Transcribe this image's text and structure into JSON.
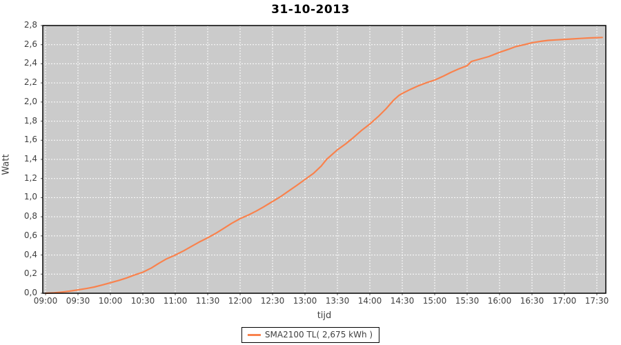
{
  "title": "31-10-2013",
  "legend": {
    "entries": [
      {
        "label": "SMA2100 TL( 2,675 kWh )",
        "color": "#f9824d"
      }
    ],
    "position": "bottom-center"
  },
  "colors": {
    "series": "#f9824d",
    "plot_background": "#cbcbcb",
    "gridline": "#ffffff",
    "plot_border": "#000000",
    "axis_text": "#3f3f3f",
    "tick_mark": "#555555",
    "title_text": "#000000",
    "page_background": "#ffffff"
  },
  "chart_data": {
    "type": "line",
    "title": "31-10-2013",
    "xlabel": "tijd",
    "ylabel": "Watt",
    "x_tick_labels": [
      "09:00",
      "09:30",
      "10:00",
      "10:30",
      "11:00",
      "11:30",
      "12:00",
      "12:30",
      "13:00",
      "13:30",
      "14:00",
      "14:30",
      "15:00",
      "15:30",
      "16:00",
      "16:30",
      "17:00",
      "17:30"
    ],
    "x_tick_minutes": [
      0,
      30,
      60,
      90,
      120,
      150,
      180,
      210,
      240,
      270,
      300,
      330,
      360,
      390,
      420,
      450,
      480,
      510
    ],
    "y_tick_labels": [
      "0,0",
      "0,2",
      "0,4",
      "0,6",
      "0,8",
      "1,0",
      "1,2",
      "1,4",
      "1,6",
      "1,8",
      "2,0",
      "2,2",
      "2,4",
      "2,6",
      "2,8"
    ],
    "y_tick_values": [
      0.0,
      0.2,
      0.4,
      0.6,
      0.8,
      1.0,
      1.2,
      1.4,
      1.6,
      1.8,
      2.0,
      2.2,
      2.4,
      2.6,
      2.8
    ],
    "ylim": [
      0,
      2.8
    ],
    "xlim_minutes": [
      0,
      510
    ],
    "grid": "dashed-white-both-axes",
    "legend_position": "bottom",
    "series": [
      {
        "name": "SMA2100 TL( 2,675 kWh )",
        "color": "#f9824d",
        "total_kwh_label": "2,675 kWh",
        "points_minutes_kwh": [
          [
            0,
            0.0
          ],
          [
            8,
            0.004
          ],
          [
            15,
            0.012
          ],
          [
            22,
            0.022
          ],
          [
            30,
            0.035
          ],
          [
            38,
            0.05
          ],
          [
            45,
            0.065
          ],
          [
            52,
            0.085
          ],
          [
            60,
            0.11
          ],
          [
            68,
            0.135
          ],
          [
            75,
            0.16
          ],
          [
            82,
            0.19
          ],
          [
            90,
            0.22
          ],
          [
            98,
            0.265
          ],
          [
            105,
            0.315
          ],
          [
            112,
            0.36
          ],
          [
            120,
            0.4
          ],
          [
            128,
            0.445
          ],
          [
            135,
            0.49
          ],
          [
            142,
            0.535
          ],
          [
            150,
            0.58
          ],
          [
            158,
            0.63
          ],
          [
            165,
            0.68
          ],
          [
            172,
            0.73
          ],
          [
            180,
            0.78
          ],
          [
            188,
            0.82
          ],
          [
            195,
            0.86
          ],
          [
            202,
            0.905
          ],
          [
            210,
            0.96
          ],
          [
            218,
            1.015
          ],
          [
            225,
            1.07
          ],
          [
            232,
            1.125
          ],
          [
            240,
            1.19
          ],
          [
            248,
            1.255
          ],
          [
            255,
            1.33
          ],
          [
            260,
            1.4
          ],
          [
            270,
            1.5
          ],
          [
            278,
            1.565
          ],
          [
            285,
            1.63
          ],
          [
            292,
            1.7
          ],
          [
            300,
            1.77
          ],
          [
            308,
            1.85
          ],
          [
            315,
            1.93
          ],
          [
            322,
            2.02
          ],
          [
            327,
            2.07
          ],
          [
            330,
            2.09
          ],
          [
            338,
            2.135
          ],
          [
            345,
            2.17
          ],
          [
            352,
            2.2
          ],
          [
            360,
            2.23
          ],
          [
            368,
            2.27
          ],
          [
            375,
            2.31
          ],
          [
            382,
            2.345
          ],
          [
            390,
            2.38
          ],
          [
            394,
            2.425
          ],
          [
            402,
            2.45
          ],
          [
            410,
            2.475
          ],
          [
            420,
            2.52
          ],
          [
            428,
            2.55
          ],
          [
            435,
            2.58
          ],
          [
            443,
            2.6
          ],
          [
            450,
            2.62
          ],
          [
            458,
            2.635
          ],
          [
            465,
            2.645
          ],
          [
            472,
            2.65
          ],
          [
            480,
            2.655
          ],
          [
            488,
            2.66
          ],
          [
            495,
            2.665
          ],
          [
            503,
            2.67
          ],
          [
            510,
            2.673
          ],
          [
            515,
            2.675
          ]
        ]
      }
    ]
  }
}
